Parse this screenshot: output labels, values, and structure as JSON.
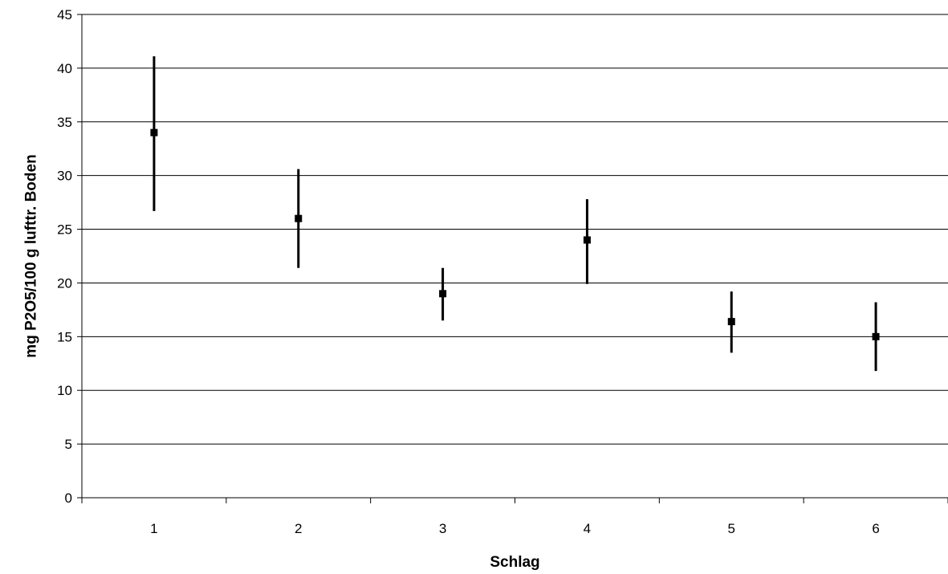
{
  "chart_data": {
    "type": "scatter",
    "title": "",
    "xlabel": "Schlag",
    "ylabel": "mg P2O5/100 g lufttr. Boden",
    "categories": [
      "1",
      "2",
      "3",
      "4",
      "5",
      "6"
    ],
    "ylim": [
      0,
      45
    ],
    "yticks": [
      0,
      5,
      10,
      15,
      20,
      25,
      30,
      35,
      40,
      45
    ],
    "grid": "horizontal",
    "legend": "none",
    "series": [
      {
        "values": [
          34,
          26,
          19,
          24,
          16.4,
          15
        ],
        "error_low": [
          26.7,
          21.4,
          16.5,
          19.9,
          13.5,
          11.8
        ],
        "error_high": [
          41.1,
          30.6,
          21.4,
          27.8,
          19.2,
          18.2
        ],
        "color": "#000000",
        "marker": "square"
      }
    ]
  }
}
